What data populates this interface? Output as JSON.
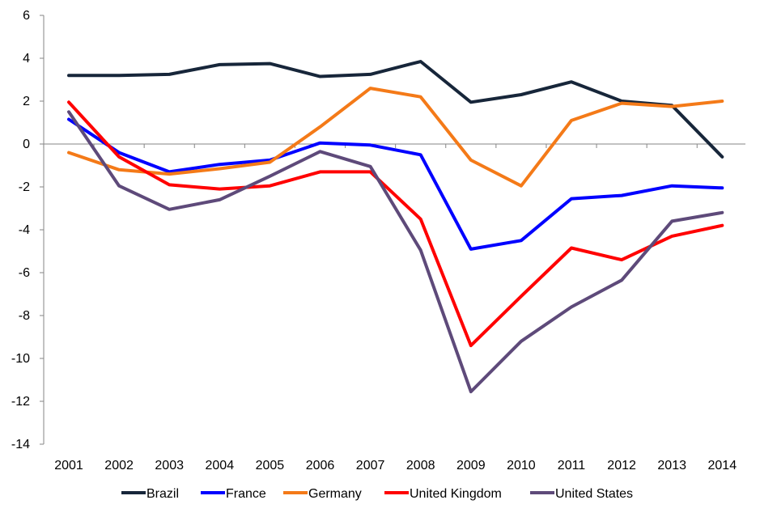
{
  "chart_data": {
    "type": "line",
    "title": "",
    "xlabel": "",
    "ylabel": "",
    "x": [
      "2001",
      "2002",
      "2003",
      "2004",
      "2005",
      "2006",
      "2007",
      "2008",
      "2009",
      "2010",
      "2011",
      "2012",
      "2013",
      "2014"
    ],
    "ylim": [
      -14,
      6
    ],
    "yticks": [
      6,
      4,
      2,
      0,
      -2,
      -4,
      -6,
      -8,
      -10,
      -12,
      -14
    ],
    "grid": false,
    "legend_position": "bottom",
    "series": [
      {
        "name": "Brazil",
        "color": "#17263A",
        "values": [
          3.2,
          3.2,
          3.25,
          3.7,
          3.75,
          3.15,
          3.25,
          3.85,
          1.95,
          2.3,
          2.9,
          2.0,
          1.8,
          -0.6
        ]
      },
      {
        "name": "France",
        "color": "#0000FF",
        "values": [
          1.15,
          -0.4,
          -1.3,
          -0.95,
          -0.75,
          0.05,
          -0.05,
          -0.5,
          -4.9,
          -4.5,
          -2.55,
          -2.4,
          -1.95,
          -2.05
        ]
      },
      {
        "name": "Germany",
        "color": "#F47A18",
        "values": [
          -0.4,
          -1.2,
          -1.4,
          -1.15,
          -0.85,
          0.8,
          2.6,
          2.2,
          -0.75,
          -1.95,
          1.1,
          1.9,
          1.75,
          2.0
        ]
      },
      {
        "name": "United Kingdom",
        "color": "#FF0000",
        "values": [
          1.95,
          -0.6,
          -1.9,
          -2.1,
          -1.95,
          -1.3,
          -1.3,
          -3.5,
          -9.4,
          -7.1,
          -4.85,
          -5.4,
          -4.3,
          -3.8
        ]
      },
      {
        "name": "United States",
        "color": "#5E4A7A",
        "values": [
          1.5,
          -1.95,
          -3.05,
          -2.6,
          -1.5,
          -0.35,
          -1.05,
          -4.95,
          -11.55,
          -9.2,
          -7.6,
          -6.35,
          -3.6,
          -3.2
        ]
      }
    ]
  }
}
